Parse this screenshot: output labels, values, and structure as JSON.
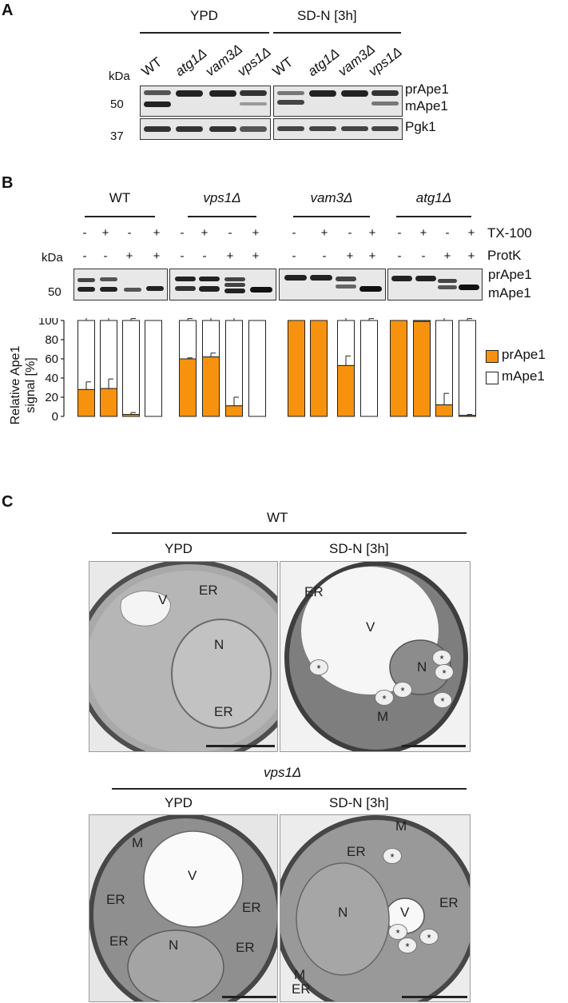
{
  "panel_a": {
    "letter": "A",
    "cond_left": "YPD",
    "cond_right": "SD-N [3h]",
    "kda_label": "kDa",
    "marker_50": "50",
    "marker_37": "37",
    "lanes": [
      "WT",
      "atg1Δ",
      "vam3Δ",
      "vps1Δ",
      "WT",
      "atg1Δ",
      "vam3Δ",
      "vps1Δ"
    ],
    "band_prape1": "prApe1",
    "band_mape1": "mApe1",
    "band_pgk1": "Pgk1"
  },
  "panel_b": {
    "letter": "B",
    "groups": [
      "WT",
      "vps1Δ",
      "vam3Δ",
      "atg1Δ"
    ],
    "tx_label": "TX-100",
    "protk_label": "ProtK",
    "kda_label": "kDa",
    "marker_50": "50",
    "tx_signs": [
      "-",
      "+",
      "-",
      "+"
    ],
    "protk_signs": [
      "-",
      "-",
      "+",
      "+"
    ],
    "band_prape1": "prApe1",
    "band_mape1": "mApe1"
  },
  "chart_data": {
    "type": "bar",
    "stacked": true,
    "ylabel": "Relative Ape1 signal [%]",
    "ylim": [
      0,
      100
    ],
    "yticks": [
      0,
      20,
      40,
      60,
      80,
      100
    ],
    "groups": [
      "WT",
      "vps1Δ",
      "vam3Δ",
      "atg1Δ"
    ],
    "conditions_per_group": 4,
    "series": [
      {
        "name": "prApe1",
        "color": "#f7920f",
        "values": [
          28,
          29,
          2,
          0,
          60,
          62,
          11,
          0,
          100,
          100,
          53,
          0,
          100,
          99,
          12,
          1
        ],
        "errors": [
          8,
          10,
          2,
          0,
          1,
          4,
          9,
          0,
          0,
          0,
          10,
          1,
          0,
          0,
          12,
          1
        ]
      },
      {
        "name": "mApe1",
        "color": "#ffffff",
        "values": [
          72,
          71,
          98,
          100,
          40,
          38,
          89,
          100,
          0,
          0,
          47,
          100,
          0,
          1,
          88,
          99
        ],
        "errors": [
          10,
          11,
          2,
          0,
          2,
          5,
          10,
          0,
          0,
          0,
          12,
          2,
          0,
          0,
          13,
          2
        ]
      }
    ],
    "legend": [
      "prApe1",
      "mApe1"
    ],
    "legend_position": "right"
  },
  "panel_c": {
    "letter": "C",
    "wt_title": "WT",
    "vps1_title": "vps1Δ",
    "ypd": "YPD",
    "sdn": "SD-N [3h]",
    "organelles": {
      "er": "ER",
      "v": "V",
      "n": "N",
      "m": "M",
      "star": "*"
    }
  }
}
